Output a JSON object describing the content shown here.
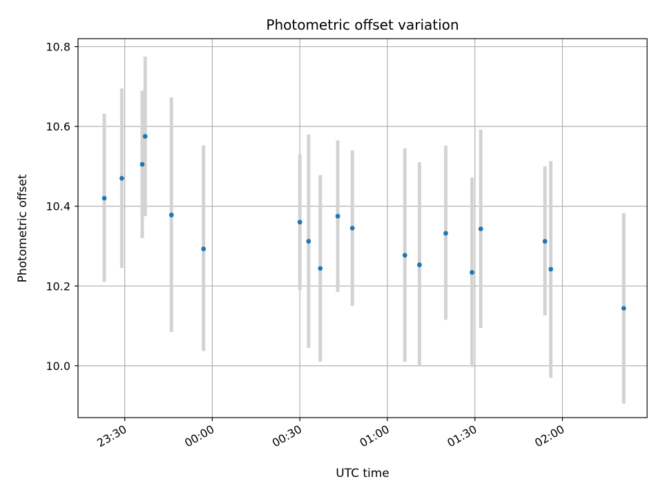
{
  "chart_data": {
    "type": "scatter",
    "title": "Photometric offset variation",
    "xlabel": "UTC time",
    "ylabel": "Photometric offset",
    "ylim": [
      9.87,
      10.82
    ],
    "xlim": [
      "23:14",
      "02:29"
    ],
    "grid": true,
    "x_tick_labels": [
      "23:30",
      "00:00",
      "00:30",
      "01:00",
      "01:30",
      "02:00"
    ],
    "y_tick_labels": [
      "10.0",
      "10.2",
      "10.4",
      "10.6",
      "10.8"
    ],
    "y_ticks": [
      10.0,
      10.2,
      10.4,
      10.6,
      10.8
    ],
    "point_color": "#1f77b4",
    "errorbar_color": "#d3d3d3",
    "points": [
      {
        "x": "23:23",
        "y": 10.42,
        "y_low": 10.21,
        "y_high": 10.632
      },
      {
        "x": "23:29",
        "y": 10.47,
        "y_low": 10.245,
        "y_high": 10.695
      },
      {
        "x": "23:36",
        "y": 10.505,
        "y_low": 10.32,
        "y_high": 10.69
      },
      {
        "x": "23:37",
        "y": 10.575,
        "y_low": 10.375,
        "y_high": 10.775
      },
      {
        "x": "23:46",
        "y": 10.378,
        "y_low": 10.085,
        "y_high": 10.673
      },
      {
        "x": "23:57",
        "y": 10.293,
        "y_low": 10.037,
        "y_high": 10.552
      },
      {
        "x": "00:30",
        "y": 10.36,
        "y_low": 10.19,
        "y_high": 10.53
      },
      {
        "x": "00:33",
        "y": 10.312,
        "y_low": 10.045,
        "y_high": 10.58
      },
      {
        "x": "00:37",
        "y": 10.244,
        "y_low": 10.01,
        "y_high": 10.478
      },
      {
        "x": "00:43",
        "y": 10.375,
        "y_low": 10.185,
        "y_high": 10.565
      },
      {
        "x": "00:48",
        "y": 10.345,
        "y_low": 10.15,
        "y_high": 10.54
      },
      {
        "x": "01:06",
        "y": 10.277,
        "y_low": 10.01,
        "y_high": 10.545
      },
      {
        "x": "01:11",
        "y": 10.253,
        "y_low": 10.0,
        "y_high": 10.51
      },
      {
        "x": "01:20",
        "y": 10.332,
        "y_low": 10.115,
        "y_high": 10.552
      },
      {
        "x": "01:29",
        "y": 10.234,
        "y_low": 9.997,
        "y_high": 10.472
      },
      {
        "x": "01:32",
        "y": 10.343,
        "y_low": 10.095,
        "y_high": 10.592
      },
      {
        "x": "01:54",
        "y": 10.312,
        "y_low": 10.126,
        "y_high": 10.5
      },
      {
        "x": "01:56",
        "y": 10.242,
        "y_low": 9.97,
        "y_high": 10.513
      },
      {
        "x": "02:21",
        "y": 10.144,
        "y_low": 9.905,
        "y_high": 10.383
      }
    ]
  }
}
